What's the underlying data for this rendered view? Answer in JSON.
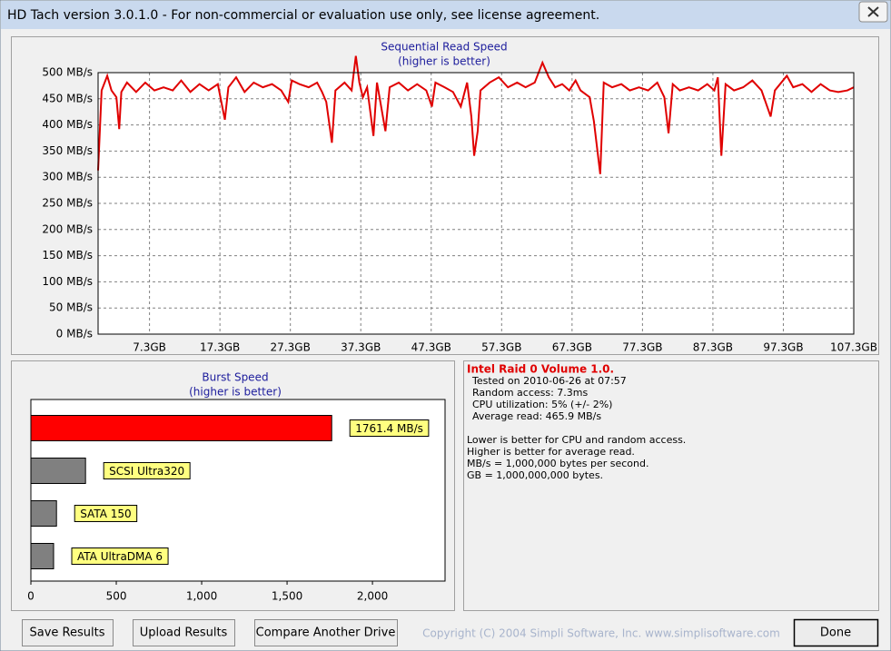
{
  "window": {
    "title": "HD Tach version 3.0.1.0  - For non-commercial or evaluation use only, see license agreement."
  },
  "sequential": {
    "type": "line",
    "title": "Sequential Read Speed",
    "subtitle": "(higher is better)",
    "color": "#e00000",
    "grid": true,
    "xlim": [
      0,
      107.3
    ],
    "ylim": [
      0,
      500
    ],
    "xticks": [
      {
        "value": 7.3,
        "label": "7.3GB"
      },
      {
        "value": 17.3,
        "label": "17.3GB"
      },
      {
        "value": 27.3,
        "label": "27.3GB"
      },
      {
        "value": 37.3,
        "label": "37.3GB"
      },
      {
        "value": 47.3,
        "label": "47.3GB"
      },
      {
        "value": 57.3,
        "label": "57.3GB"
      },
      {
        "value": 67.3,
        "label": "67.3GB"
      },
      {
        "value": 77.3,
        "label": "77.3GB"
      },
      {
        "value": 87.3,
        "label": "87.3GB"
      },
      {
        "value": 97.3,
        "label": "97.3GB"
      },
      {
        "value": 107.3,
        "label": "107.3GB"
      }
    ],
    "yticks": [
      {
        "value": 0,
        "label": "0 MB/s"
      },
      {
        "value": 50,
        "label": "50 MB/s"
      },
      {
        "value": 100,
        "label": "100 MB/s"
      },
      {
        "value": 150,
        "label": "150 MB/s"
      },
      {
        "value": 200,
        "label": "200 MB/s"
      },
      {
        "value": 250,
        "label": "250 MB/s"
      },
      {
        "value": 300,
        "label": "300 MB/s"
      },
      {
        "value": 350,
        "label": "350 MB/s"
      },
      {
        "value": 400,
        "label": "400 MB/s"
      },
      {
        "value": 450,
        "label": "450 MB/s"
      },
      {
        "value": 500,
        "label": "500 MB/s"
      }
    ],
    "x": [
      0,
      0.5,
      1.3,
      1.9,
      2.6,
      3.0,
      3.3,
      4.1,
      5.4,
      6.7,
      8.0,
      9.3,
      10.6,
      11.8,
      13.1,
      14.4,
      15.7,
      17.0,
      18.0,
      18.5,
      19.6,
      20.8,
      22.1,
      23.4,
      24.7,
      26.0,
      27.0,
      27.5,
      28.6,
      29.9,
      31.1,
      31.8,
      32.4,
      33.2,
      33.7,
      35.0,
      36.0,
      36.6,
      37.1,
      37.6,
      38.2,
      39.1,
      39.6,
      40.8,
      41.4,
      42.7,
      44.0,
      45.3,
      46.6,
      47.4,
      47.9,
      49.2,
      50.4,
      51.5,
      52.4,
      53.0,
      53.4,
      53.9,
      54.3,
      55.6,
      56.9,
      58.2,
      59.5,
      60.7,
      62.0,
      63.1,
      64.0,
      64.9,
      65.9,
      66.9,
      67.8,
      68.5,
      69.8,
      70.4,
      71.3,
      71.8,
      73.0,
      74.3,
      75.5,
      76.8,
      78.1,
      79.4,
      80.4,
      81.0,
      81.6,
      82.6,
      83.9,
      85.2,
      86.5,
      87.5,
      88.0,
      88.5,
      89.1,
      90.3,
      91.6,
      92.9,
      94.2,
      95.5,
      96.1,
      97.8,
      98.7,
      100.0,
      101.3,
      102.6,
      103.9,
      105.1,
      106.4,
      107.3
    ],
    "values": [
      313,
      466,
      494,
      466,
      453,
      392,
      463,
      481,
      463,
      481,
      466,
      472,
      466,
      485,
      463,
      478,
      466,
      478,
      410,
      472,
      491,
      463,
      481,
      472,
      478,
      466,
      444,
      485,
      478,
      472,
      481,
      463,
      444,
      366,
      466,
      481,
      466,
      532,
      481,
      453,
      472,
      379,
      481,
      388,
      472,
      481,
      466,
      478,
      466,
      435,
      481,
      472,
      463,
      435,
      481,
      416,
      341,
      388,
      466,
      481,
      491,
      472,
      481,
      472,
      481,
      519,
      491,
      472,
      478,
      466,
      485,
      466,
      453,
      407,
      306,
      481,
      472,
      478,
      466,
      472,
      466,
      481,
      453,
      384,
      478,
      466,
      472,
      466,
      478,
      466,
      491,
      341,
      478,
      466,
      472,
      485,
      466,
      416,
      466,
      494,
      472,
      478,
      463,
      478,
      466,
      463,
      466,
      472
    ]
  },
  "burst": {
    "type": "hbar",
    "title": "Burst Speed",
    "subtitle": "(higher is better)",
    "xlim": [
      0,
      2425
    ],
    "xticks": [
      0,
      500,
      {
        "value": 1000,
        "label": "1,000"
      },
      {
        "value": 1500,
        "label": "1,500"
      },
      {
        "value": 2000,
        "label": "2,000"
      }
    ],
    "bars": [
      {
        "value": 1761.4,
        "label": "1761.4 MB/s",
        "color": "#ff0000"
      },
      {
        "value": 320,
        "label": "SCSI Ultra320",
        "color": "#808080"
      },
      {
        "value": 150,
        "label": "SATA 150",
        "color": "#808080"
      },
      {
        "value": 133,
        "label": "ATA UltraDMA 6",
        "color": "#808080"
      }
    ]
  },
  "info": {
    "heading": "Intel Raid 0 Volume 1.0.",
    "details": [
      "Tested on 2010-06-26 at 07:57",
      "Random access: 7.3ms",
      "CPU utilization: 5% (+/- 2%)",
      "Average read: 465.9 MB/s"
    ],
    "notes": [
      "Lower is better for CPU and random access.",
      "Higher is better for average read.",
      "MB/s = 1,000,000 bytes per second.",
      "GB = 1,000,000,000 bytes."
    ]
  },
  "buttons": [
    "Save Results",
    "Upload Results",
    "Compare Another Drive",
    "Done"
  ],
  "copyright": "Copyright (C) 2004 Simpli Software, Inc. www.simplisoftware.com"
}
